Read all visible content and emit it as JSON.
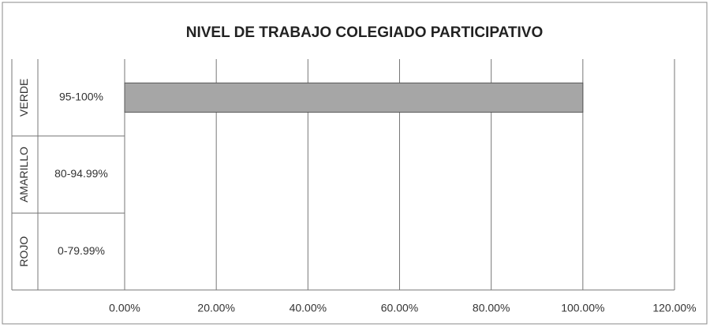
{
  "chart_data": {
    "type": "hbar",
    "title": "NIVEL DE TRABAJO COLEGIADO PARTICIPATIVO",
    "groups": [
      "VERDE",
      "AMARILLO",
      "ROJO"
    ],
    "categories": [
      "95-100%",
      "80-94.99%",
      "0-79.99%"
    ],
    "values": [
      100,
      0,
      0
    ],
    "color": "#a6a6a6",
    "xlim": [
      0,
      120
    ],
    "xticks": [
      {
        "value": 0,
        "label": "0.00%"
      },
      {
        "value": 20,
        "label": "20.00%"
      },
      {
        "value": 40,
        "label": "40.00%"
      },
      {
        "value": 60,
        "label": "60.00%"
      },
      {
        "value": 80,
        "label": "80.00%"
      },
      {
        "value": 100,
        "label": "100.00%"
      },
      {
        "value": 120,
        "label": "120.00%"
      }
    ],
    "grid": true
  }
}
